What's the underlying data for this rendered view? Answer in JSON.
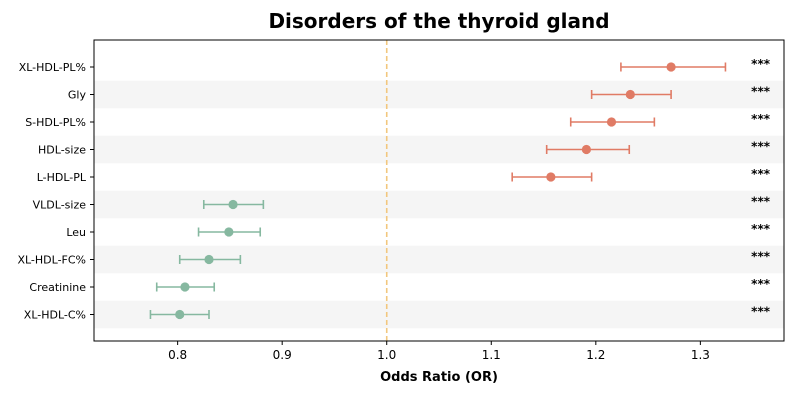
{
  "chart_data": {
    "type": "forest",
    "title": "Disorders of the thyroid gland",
    "xlabel": "Odds Ratio (OR)",
    "ylabel": "",
    "xlim": [
      0.72,
      1.38
    ],
    "xticks": [
      "0.8",
      "0.9",
      "1.0",
      "1.1",
      "1.2",
      "1.3"
    ],
    "reference_line": {
      "x": 1.0,
      "color": "#f2c77e",
      "style": "dashed"
    },
    "colors": {
      "positive": "#e07b65",
      "negative": "#86b8a0",
      "band": "#f5f5f5"
    },
    "rows": [
      {
        "label": "XL-HDL-PL%",
        "or": 1.272,
        "lo": 1.224,
        "hi": 1.324,
        "sig": "***"
      },
      {
        "label": "Gly",
        "or": 1.233,
        "lo": 1.196,
        "hi": 1.272,
        "sig": "***"
      },
      {
        "label": "S-HDL-PL%",
        "or": 1.215,
        "lo": 1.176,
        "hi": 1.256,
        "sig": "***"
      },
      {
        "label": "HDL-size",
        "or": 1.191,
        "lo": 1.153,
        "hi": 1.232,
        "sig": "***"
      },
      {
        "label": "L-HDL-PL",
        "or": 1.157,
        "lo": 1.12,
        "hi": 1.196,
        "sig": "***"
      },
      {
        "label": "VLDL-size",
        "or": 0.853,
        "lo": 0.825,
        "hi": 0.882,
        "sig": "***"
      },
      {
        "label": "Leu",
        "or": 0.849,
        "lo": 0.82,
        "hi": 0.879,
        "sig": "***"
      },
      {
        "label": "XL-HDL-FC%",
        "or": 0.83,
        "lo": 0.802,
        "hi": 0.86,
        "sig": "***"
      },
      {
        "label": "Creatinine",
        "or": 0.807,
        "lo": 0.78,
        "hi": 0.835,
        "sig": "***"
      },
      {
        "label": "XL-HDL-C%",
        "or": 0.802,
        "lo": 0.774,
        "hi": 0.83,
        "sig": "***"
      }
    ]
  }
}
